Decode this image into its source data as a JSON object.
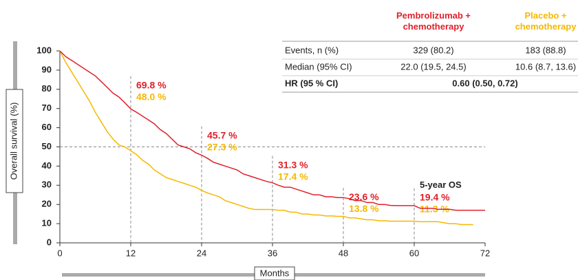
{
  "chart_data": {
    "type": "line",
    "x_label": "Months",
    "y_label": "Overall survival (%)",
    "xlim": [
      0,
      72
    ],
    "xticks": [
      0,
      12,
      24,
      36,
      48,
      60,
      72
    ],
    "ylim": [
      0,
      100
    ],
    "yticks": [
      0,
      10,
      20,
      30,
      40,
      50,
      60,
      70,
      80,
      90,
      100
    ],
    "reference_line": 50,
    "x": [
      0,
      1,
      2,
      3,
      4,
      5,
      6,
      7,
      8,
      9,
      10,
      11,
      12,
      13,
      14,
      15,
      16,
      17,
      18,
      19,
      20,
      21,
      22,
      23,
      24,
      25,
      26,
      27,
      28,
      29,
      30,
      31,
      32,
      33,
      34,
      35,
      36,
      37,
      38,
      39,
      40,
      41,
      42,
      43,
      44,
      45,
      46,
      47,
      48,
      49,
      50,
      51,
      52,
      53,
      54,
      55,
      56,
      57,
      58,
      59,
      60,
      61,
      62,
      63,
      64,
      65,
      66,
      67,
      68,
      69,
      70,
      71,
      72
    ],
    "series": [
      {
        "name": "Pembrolizumab + chemotherapy",
        "color": "#e0202a",
        "values": [
          100,
          97,
          95,
          93,
          91,
          89,
          87,
          84,
          81,
          78,
          76,
          73,
          69.8,
          68,
          66,
          64,
          62,
          59,
          57,
          54,
          51,
          50,
          49,
          47,
          45.7,
          44,
          42,
          41,
          40,
          39,
          38,
          36,
          35,
          34,
          33,
          32,
          31.3,
          30,
          29,
          29,
          28,
          27,
          26,
          25,
          25,
          24,
          24,
          23.6,
          23.6,
          23,
          22,
          22,
          21,
          21,
          20,
          20,
          19.5,
          19.4,
          19.4,
          19.4,
          19.4,
          18,
          18,
          18,
          17.5,
          17.5,
          17.5,
          17,
          17,
          17,
          17,
          17,
          17
        ]
      },
      {
        "name": "Placebo + chemotherapy",
        "color": "#f5b800",
        "values": [
          100,
          94,
          89,
          84,
          79,
          74,
          68,
          63,
          58,
          54,
          51,
          50,
          48,
          46,
          43,
          41,
          38,
          36,
          34,
          33,
          32,
          31,
          30,
          29,
          27.3,
          26,
          25,
          24,
          22,
          21,
          20,
          19,
          18,
          17.4,
          17.4,
          17.4,
          17.4,
          17,
          17,
          16,
          16,
          15,
          15,
          14.5,
          14.5,
          14,
          14,
          13.8,
          13.8,
          13,
          13,
          12.5,
          12,
          12,
          11.5,
          11.5,
          11.3,
          11.3,
          11.3,
          11.3,
          11.3,
          11,
          11,
          11,
          11,
          10.5,
          10,
          10,
          9.5,
          9.5,
          9.5,
          null,
          null
        ]
      }
    ],
    "landmarks": [
      {
        "x": 12,
        "values": [
          69.8,
          48.0
        ],
        "value_labels": [
          "69.8 %",
          "48.0 %"
        ]
      },
      {
        "x": 24,
        "values": [
          45.7,
          27.3
        ],
        "value_labels": [
          "45.7 %",
          "27.3 %"
        ]
      },
      {
        "x": 36,
        "values": [
          31.3,
          17.4
        ],
        "value_labels": [
          "31.3 %",
          "17.4 %"
        ]
      },
      {
        "x": 48,
        "values": [
          23.6,
          13.8
        ],
        "value_labels": [
          "23.6 %",
          "13.8 %"
        ]
      },
      {
        "x": 60,
        "title": "5-year OS",
        "values": [
          19.4,
          11.3
        ],
        "value_labels": [
          "19.4 %",
          "11.3 %"
        ]
      }
    ],
    "table": {
      "columns": [
        "Pembrolizumab +\nchemotherapy",
        "Placebo +\nchemotherapy"
      ],
      "rows": [
        [
          "Events, n (%)",
          "329 (80.2)",
          "183 (88.8)"
        ],
        [
          "Median (95% CI)",
          "22.0 (19.5, 24.5)",
          "10.6 (8.7, 13.6)"
        ]
      ],
      "hr_row": [
        "HR (95 % CI)",
        "0.60 (0.50, 0.72)"
      ]
    }
  }
}
